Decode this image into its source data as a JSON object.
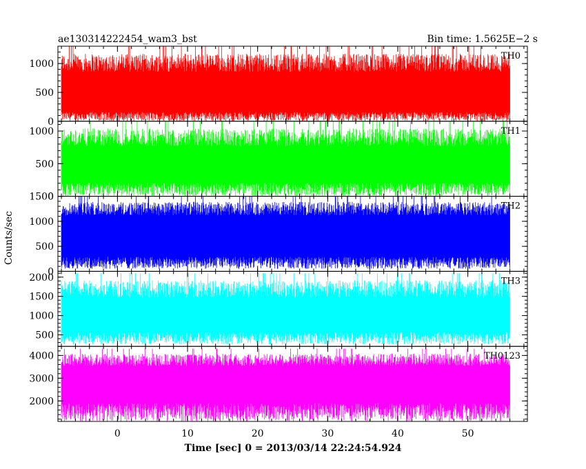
{
  "header": {
    "title": "ae130314222454_wam3_bst",
    "bin_time": "Bin time: 1.5625E−2 s"
  },
  "axes": {
    "ylabel": "Counts/sec",
    "xlabel": "Time [sec] 0 = 2013/03/14 22:24:54.924"
  },
  "chart_data": {
    "type": "line",
    "title": "ae130314222454_wam3_bst",
    "subtitle": "Bin time: 1.5625E−2 s",
    "xlabel": "Time [sec] 0 = 2013/03/14 22:24:54.924",
    "ylabel": "Counts/sec",
    "xlim": [
      -8.5,
      58.5
    ],
    "data_x_range": [
      -8,
      56
    ],
    "x_ticks": [
      0,
      10,
      20,
      30,
      40,
      50
    ],
    "x_tick_labels": [
      "0",
      "10",
      "20",
      "30",
      "40",
      "50"
    ],
    "panels": [
      {
        "label": "TH0",
        "color": "#ff0000",
        "ylim": [
          0,
          1300
        ],
        "y_ticks": [
          0,
          500,
          1000
        ],
        "y_tick_labels": [
          "0",
          "500",
          "1000"
        ],
        "mean": 500,
        "low": 100,
        "high": 950,
        "lo_min": 0,
        "hi_max": 1300
      },
      {
        "label": "TH1",
        "color": "#00ff00",
        "ylim": [
          0,
          1150
        ],
        "y_ticks": [
          0,
          500,
          1000
        ],
        "y_tick_labels": [
          "0",
          "500",
          "1000"
        ],
        "mean": 430,
        "low": 130,
        "high": 850,
        "lo_min": 0,
        "hi_max": 1150
      },
      {
        "label": "TH2",
        "color": "#0000ff",
        "ylim": [
          0,
          1500
        ],
        "y_ticks": [
          0,
          500,
          1000,
          1500
        ],
        "y_tick_labels": [
          "0",
          "500",
          "1000",
          "1500"
        ],
        "mean": 700,
        "low": 200,
        "high": 1200,
        "lo_min": 50,
        "hi_max": 1500
      },
      {
        "label": "TH3",
        "color": "#00ffff",
        "ylim": [
          200,
          2150
        ],
        "y_ticks": [
          500,
          1000,
          1500,
          2000
        ],
        "y_tick_labels": [
          "500",
          "1000",
          "1500",
          "2000"
        ],
        "mean": 900,
        "low": 450,
        "high": 1600,
        "lo_min": 250,
        "hi_max": 2100
      },
      {
        "label": "TH0123",
        "color": "#ff00ff",
        "ylim": [
          1100,
          4400
        ],
        "y_ticks": [
          2000,
          3000,
          4000
        ],
        "y_tick_labels": [
          "2000",
          "3000",
          "4000"
        ],
        "mean": 2550,
        "low": 1600,
        "high": 3700,
        "lo_min": 1100,
        "hi_max": 4300
      }
    ]
  }
}
